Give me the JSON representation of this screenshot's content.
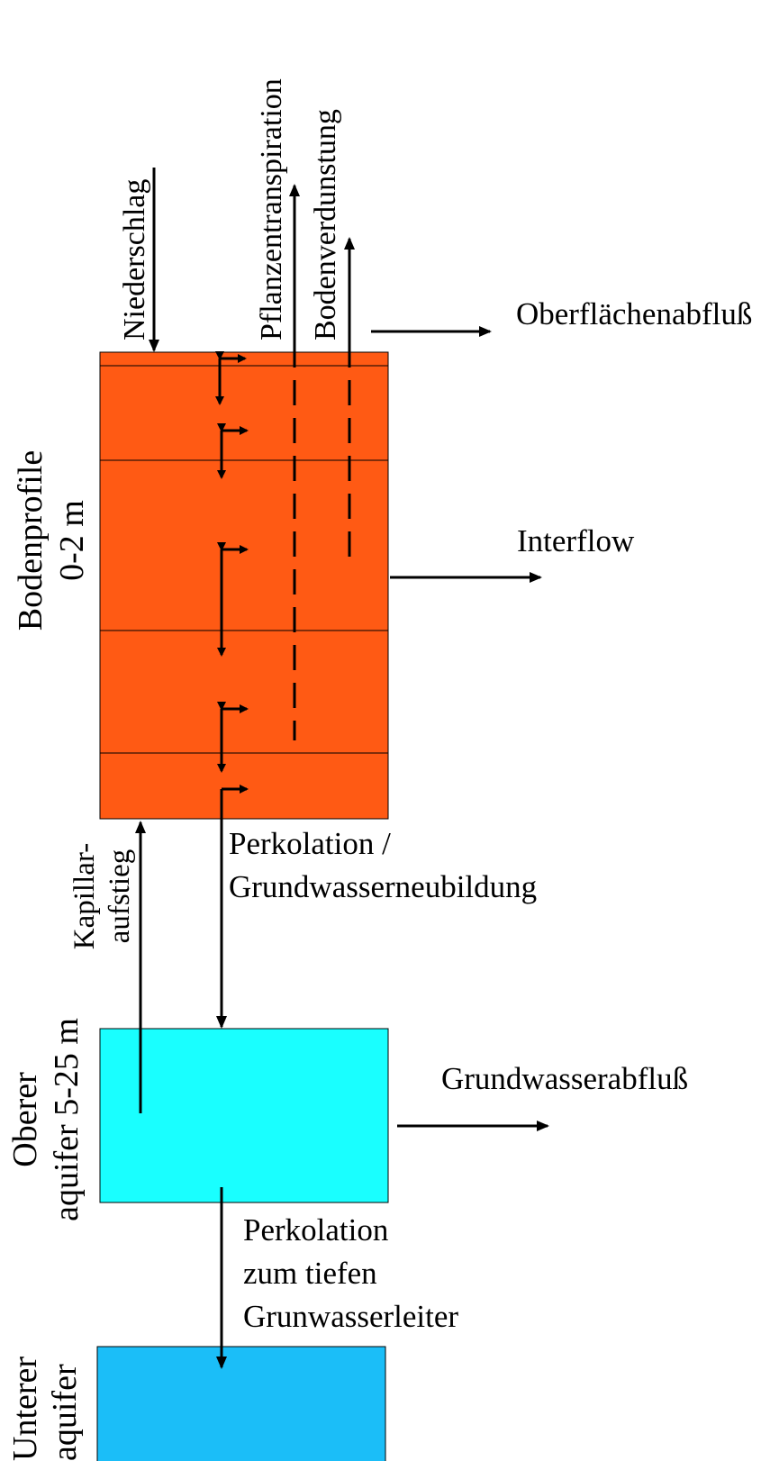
{
  "labels": {
    "niederschlag": "Niederschlag",
    "pflanzentranspiration": "Pflanzentranspiration",
    "bodenverdunstung": "Bodenverdunstung",
    "oberflaechenabfluss": "Oberflächenabfluß",
    "interflow": "Interflow",
    "bodenprofile_line1": "Bodenprofile",
    "bodenprofile_line2": "0-2 m",
    "kapillar_line1": "Kapillar-",
    "kapillar_line2": "aufstieg",
    "perkolation_line1": "Perkolation /",
    "perkolation_line2": "Grundwasserneubildung",
    "grundwasserabfluss": "Grundwasserabfluß",
    "oberer_line1": "Oberer",
    "oberer_line2": "aquifer 5-25 m",
    "perk_tief_line1": "Perkolation",
    "perk_tief_line2": "zum tiefen",
    "perk_tief_line3": "Grunwasserleiter",
    "unterer_line1": "Unterer",
    "unterer_line2": "aquifer"
  },
  "colors": {
    "soil": "#ff5a14",
    "upper_aquifer": "#19ffff",
    "lower_aquifer": "#1bbef8",
    "line": "#000000"
  }
}
